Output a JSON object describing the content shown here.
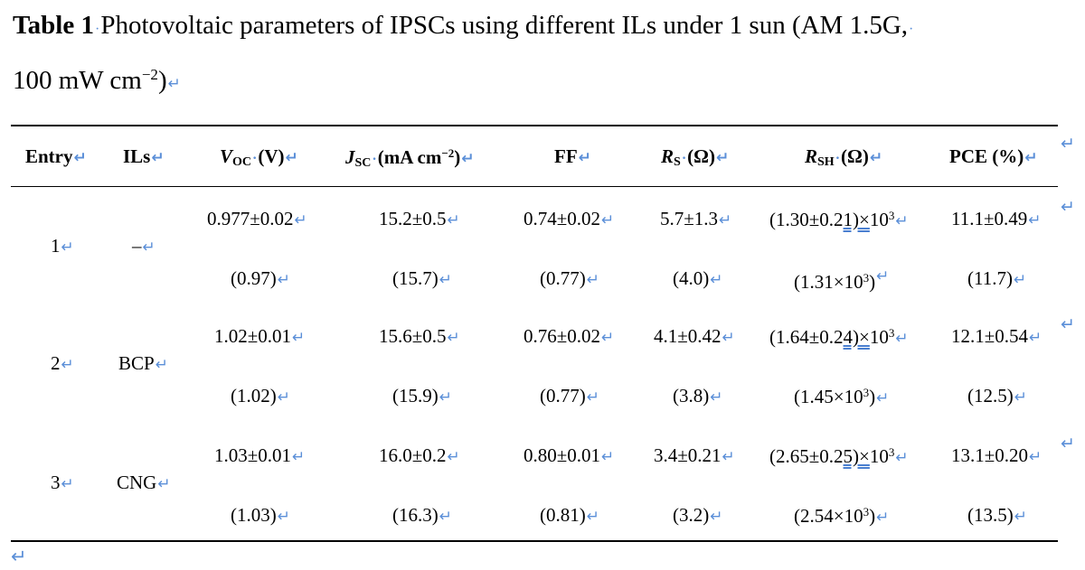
{
  "caption": {
    "label": "Table 1",
    "text": "Photovoltaic parameters of IPSCs using different ILs under 1 sun (AM 1.5G,",
    "line2": "100 mW cm",
    "line2_sup": "−2",
    "line2_end": ")"
  },
  "headers": {
    "entry": "Entry",
    "ils": "ILs",
    "voc_main": "V",
    "voc_sub": "OC",
    "voc_unit": "(V)",
    "jsc_main": "J",
    "jsc_sub": "SC",
    "jsc_unit": "(mA cm",
    "jsc_sup": "−2",
    "jsc_end": ")",
    "ff": "FF",
    "rs_main": "R",
    "rs_sub": "S",
    "rs_unit": "(Ω)",
    "rsh_main": "R",
    "rsh_sub": "SH",
    "rsh_unit": "(Ω)",
    "pce": "PCE (%)"
  },
  "rows": [
    {
      "entry": "1",
      "ils": "–",
      "voc": "0.977±0.02",
      "voc_best": "(0.97)",
      "jsc": "15.2±0.5",
      "jsc_best": "(15.7)",
      "ff": "0.74±0.02",
      "ff_best": "(0.77)",
      "rs": "5.7±1.3",
      "rs_best": "(4.0)",
      "rsh_pre": "(1.30±0.2",
      "rsh_u": "1)×",
      "rsh_post": "10",
      "rsh_exp": "3",
      "rsh_best": "(1.31×10",
      "rsh_best_exp": "3",
      "rsh_best_end": ")",
      "pce": "11.1±0.49",
      "pce_best": "(11.7)"
    },
    {
      "entry": "2",
      "ils": "BCP",
      "voc": "1.02±0.01",
      "voc_best": "(1.02)",
      "jsc": "15.6±0.5",
      "jsc_best": "(15.9)",
      "ff": "0.76±0.02",
      "ff_best": "(0.77)",
      "rs": "4.1±0.42",
      "rs_best": "(3.8)",
      "rsh_pre": "(1.64±0.2",
      "rsh_u": "4)×",
      "rsh_post": "10",
      "rsh_exp": "3",
      "rsh_best": "(1.45×10",
      "rsh_best_exp": "3",
      "rsh_best_end": ")",
      "pce": "12.1±0.54",
      "pce_best": "(12.5)"
    },
    {
      "entry": "3",
      "ils": "CNG",
      "voc": "1.03±0.01",
      "voc_best": "(1.03)",
      "jsc": "16.0±0.2",
      "jsc_best": "(16.3)",
      "ff": "0.80±0.01",
      "ff_best": "(0.81)",
      "rs": "3.4±0.21",
      "rs_best": "(3.2)",
      "rsh_pre": "(2.65±0.2",
      "rsh_u": "5)×",
      "rsh_post": "10",
      "rsh_exp": "3",
      "rsh_best": "(2.54×10",
      "rsh_best_exp": "3",
      "rsh_best_end": ")",
      "pce": "13.1±0.20",
      "pce_best": "(13.5)"
    }
  ],
  "colors": {
    "formatting_mark": "#5b8fd8",
    "rule": "#000000",
    "grammar_underline": "#4a7fd0"
  }
}
